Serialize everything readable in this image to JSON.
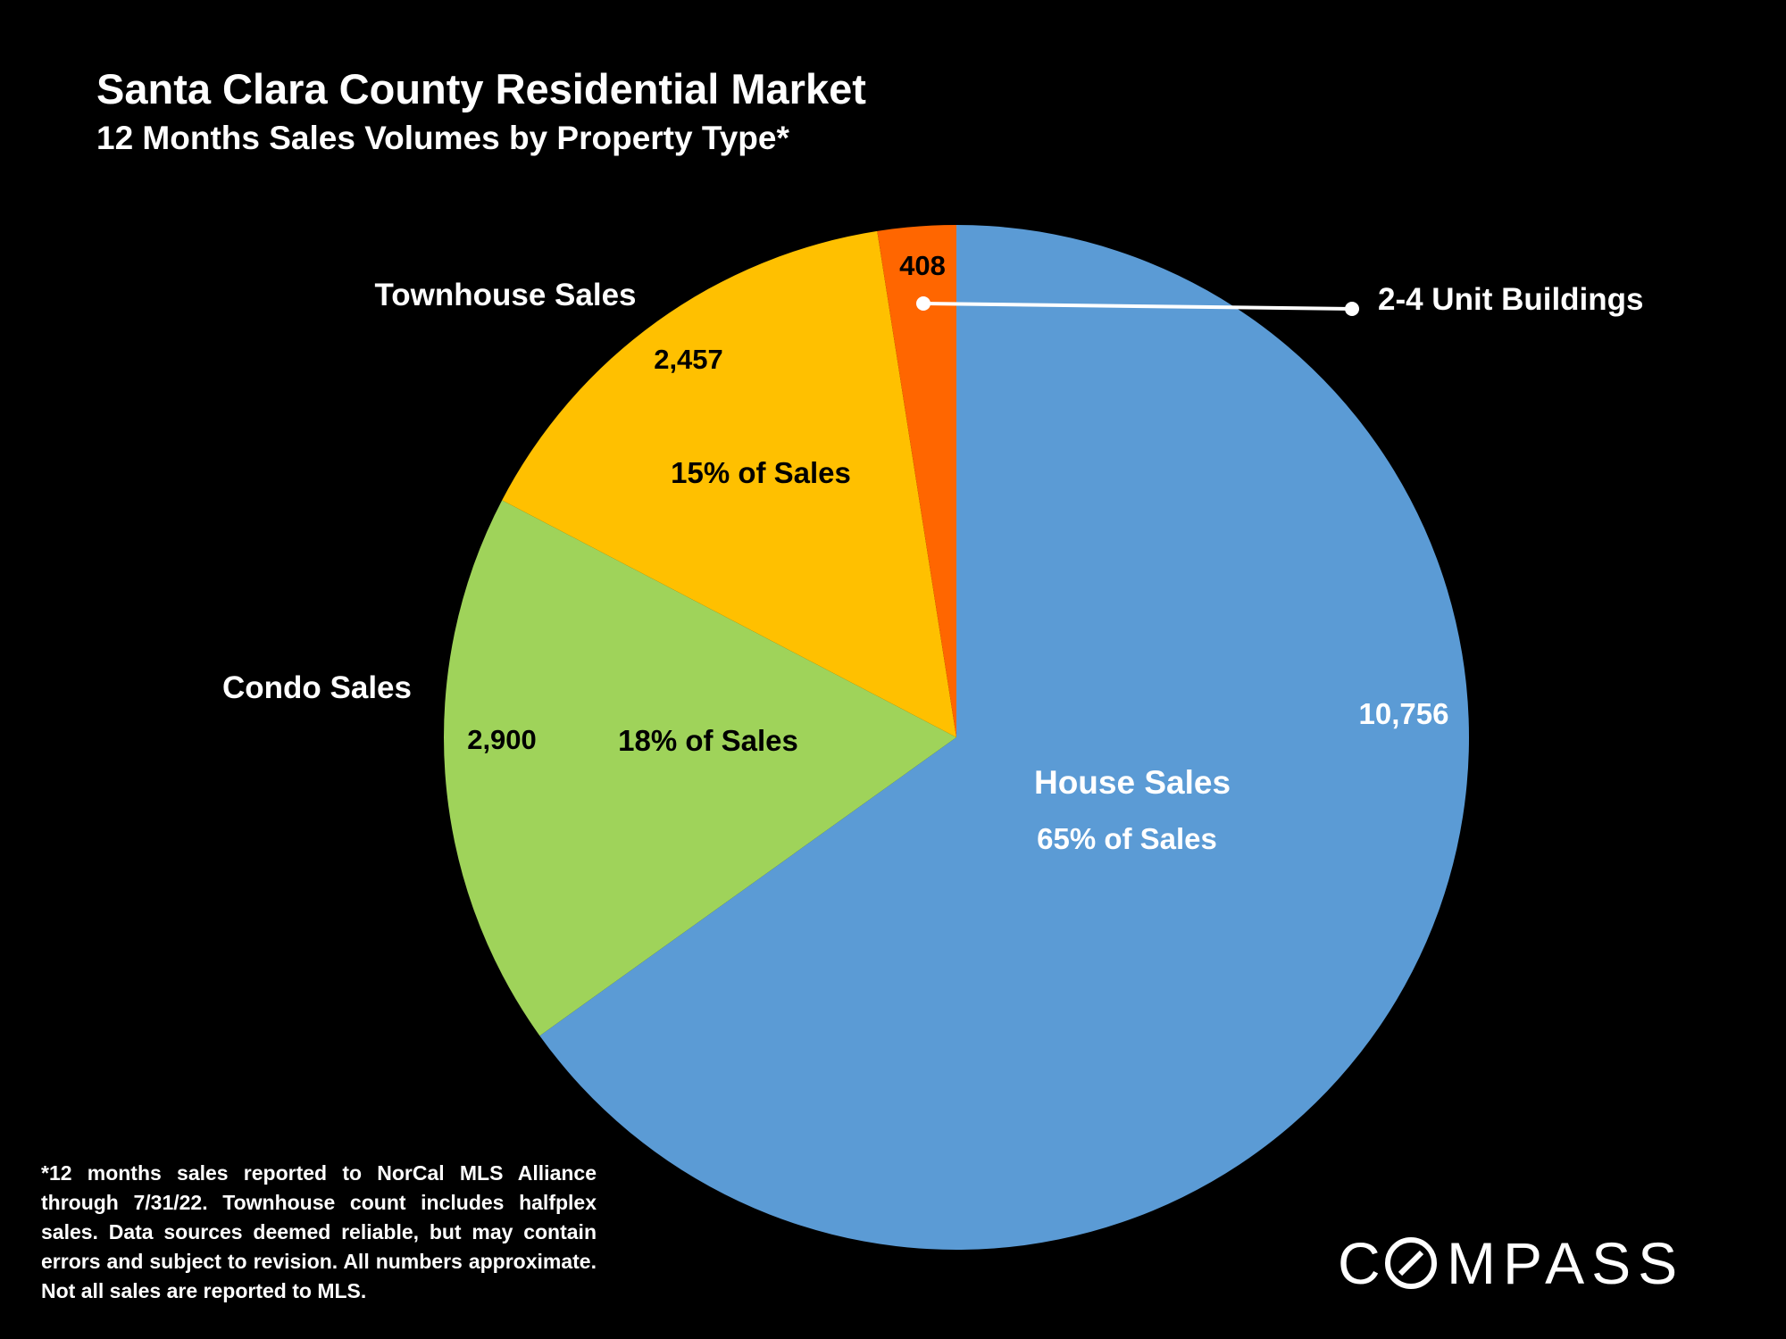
{
  "chart_data": {
    "type": "pie",
    "title": "Santa Clara County Residential Market",
    "subtitle": "12 Months Sales Volumes by Property Type*",
    "slices": [
      {
        "label": "House Sales",
        "value": 10756,
        "value_label": "10,756",
        "pct_label": "65% of Sales",
        "color": "#5b9bd5"
      },
      {
        "label": "Condo Sales",
        "value": 2900,
        "value_label": "2,900",
        "pct_label": "18% of Sales",
        "color": "#9fd35a"
      },
      {
        "label": "Townhouse Sales",
        "value": 2457,
        "value_label": "2,457",
        "pct_label": "15% of Sales",
        "color": "#ffc000"
      },
      {
        "label": "2-4 Unit Buildings",
        "value": 408,
        "value_label": "408",
        "pct_label": "",
        "color": "#ff6600"
      }
    ],
    "start_angle_deg": 0,
    "direction": "clockwise"
  },
  "footnote": "*12 months sales reported to NorCal MLS Alliance through 7/31/22. Townhouse count includes halfplex sales. Data sources deemed reliable, but may contain errors and subject to revision. All numbers approximate. Not all sales are reported to MLS.",
  "logo": {
    "text": "COMPASS"
  }
}
